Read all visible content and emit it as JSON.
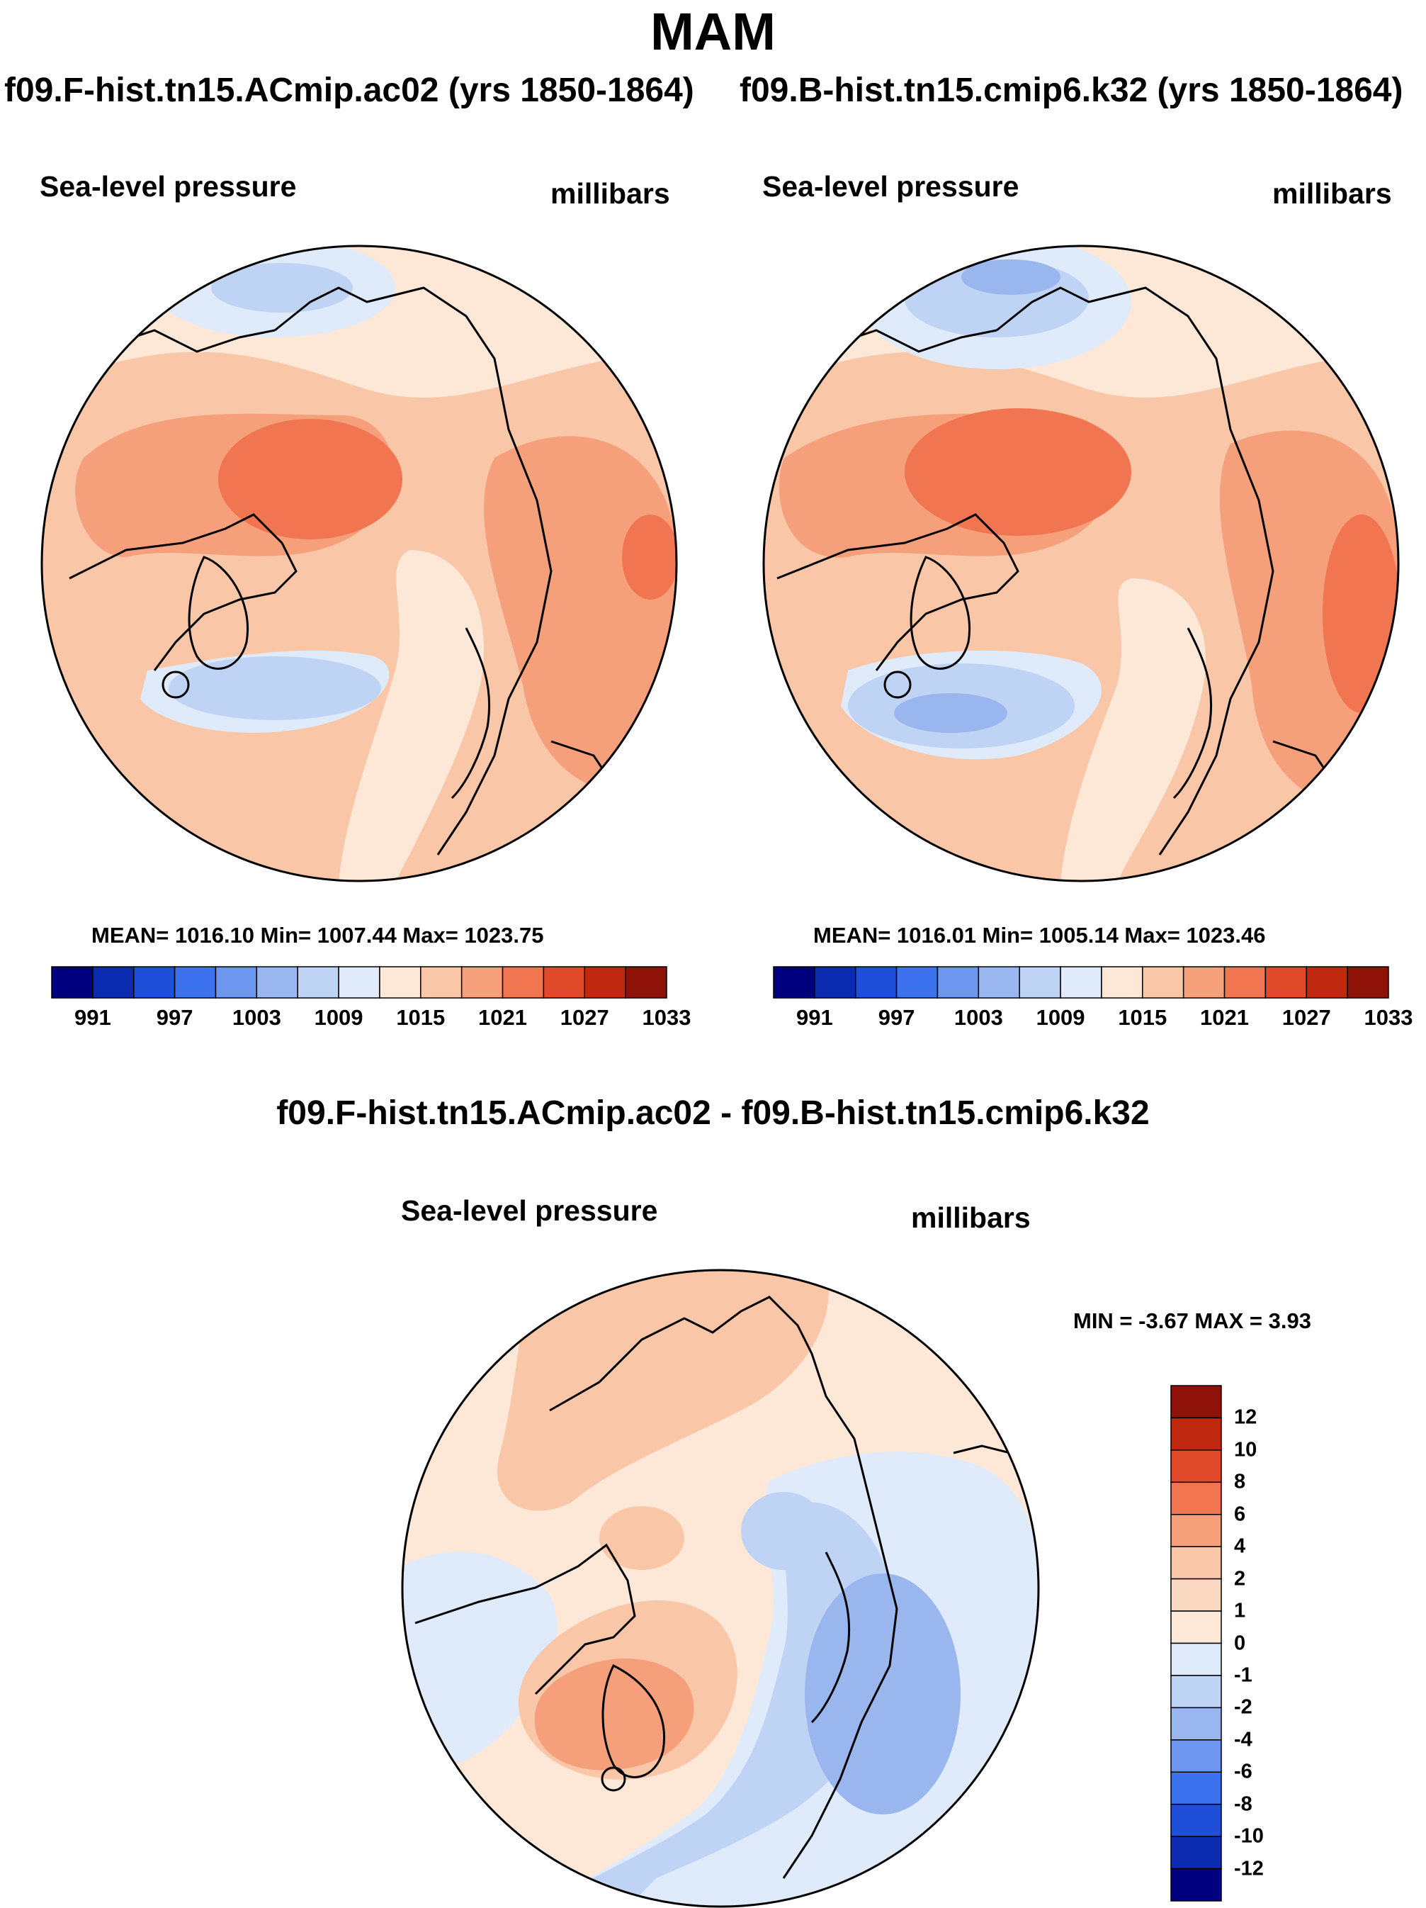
{
  "figure": {
    "season": "MAM",
    "left_case": "f09.F-hist.tn15.ACmip.ac02 (yrs 1850-1864)",
    "right_case": "f09.B-hist.tn15.cmip6.k32 (yrs 1850-1864)",
    "diff_title": "f09.F-hist.tn15.ACmip.ac02 - f09.B-hist.tn15.cmip6.k32"
  },
  "colors": {
    "scale": [
      "#00007f",
      "#0b2bb0",
      "#1f4fd8",
      "#3d72ee",
      "#6d97ef",
      "#9ab6ef",
      "#bfd3f5",
      "#dfeafa",
      "#fde8d8",
      "#f9c6a8",
      "#f5a07a",
      "#f07550",
      "#e04a2a",
      "#c02810",
      "#8f1208"
    ],
    "coast": "#000000"
  },
  "chart_data": [
    {
      "type": "heatmap",
      "panel": "left",
      "title": "Sea-level pressure",
      "units": "millibars",
      "stats_text": "MEAN= 1016.10  Min= 1007.44  Max= 1023.75",
      "mean": 1016.1,
      "min": 1007.44,
      "max": 1023.75,
      "colorbar_ticks": [
        "991",
        "997",
        "1003",
        "1009",
        "1015",
        "1021",
        "1027",
        "1033"
      ],
      "colorbar_levels": 14
    },
    {
      "type": "heatmap",
      "panel": "right",
      "title": "Sea-level pressure",
      "units": "millibars",
      "stats_text": "MEAN= 1016.01  Min= 1005.14  Max= 1023.46",
      "mean": 1016.01,
      "min": 1005.14,
      "max": 1023.46,
      "colorbar_ticks": [
        "991",
        "997",
        "1003",
        "1009",
        "1015",
        "1021",
        "1027",
        "1033"
      ],
      "colorbar_levels": 14
    },
    {
      "type": "heatmap",
      "panel": "difference",
      "title": "Sea-level pressure",
      "units": "millibars",
      "stats_text": "MIN =  -3.67 MAX =   3.93",
      "min": -3.67,
      "max": 3.93,
      "colorbar_ticks": [
        "12",
        "10",
        "8",
        "6",
        "4",
        "2",
        "1",
        "0",
        "-1",
        "-2",
        "-4",
        "-6",
        "-8",
        "-10",
        "-12"
      ]
    }
  ]
}
